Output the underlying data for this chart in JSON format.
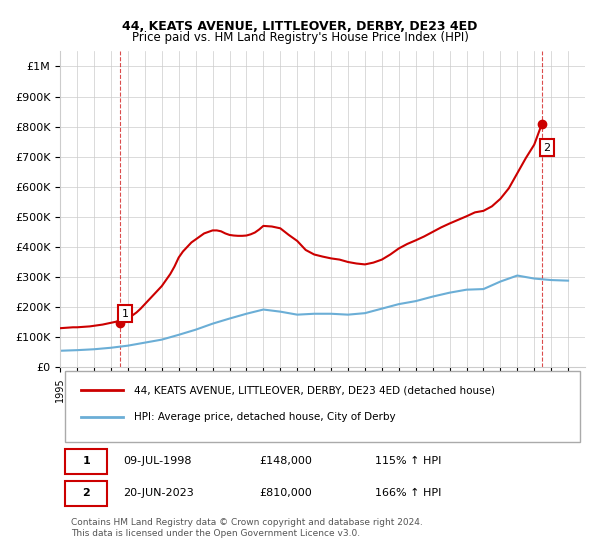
{
  "title": "44, KEATS AVENUE, LITTLEOVER, DERBY, DE23 4ED",
  "subtitle": "Price paid vs. HM Land Registry's House Price Index (HPI)",
  "legend_line1": "44, KEATS AVENUE, LITTLEOVER, DERBY, DE23 4ED (detached house)",
  "legend_line2": "HPI: Average price, detached house, City of Derby",
  "footnote": "Contains HM Land Registry data © Crown copyright and database right 2024.\nThis data is licensed under the Open Government Licence v3.0.",
  "point1_label": "1",
  "point1_date": "09-JUL-1998",
  "point1_price": "£148,000",
  "point1_hpi": "115% ↑ HPI",
  "point2_label": "2",
  "point2_date": "20-JUN-2023",
  "point2_price": "£810,000",
  "point2_hpi": "166% ↑ HPI",
  "ylim": [
    0,
    1050000
  ],
  "yticks": [
    0,
    100000,
    200000,
    300000,
    400000,
    500000,
    600000,
    700000,
    800000,
    900000,
    1000000
  ],
  "ytick_labels": [
    "£0",
    "£100K",
    "£200K",
    "£300K",
    "£400K",
    "£500K",
    "£600K",
    "£700K",
    "£800K",
    "£900K",
    "£1M"
  ],
  "hpi_color": "#6baed6",
  "sale_color": "#cc0000",
  "point_color": "#cc0000",
  "background_color": "#ffffff",
  "grid_color": "#cccccc",
  "hpi_years": [
    1995,
    1996,
    1997,
    1998,
    1999,
    2000,
    2001,
    2002,
    2003,
    2004,
    2005,
    2006,
    2007,
    2008,
    2009,
    2010,
    2011,
    2012,
    2013,
    2014,
    2015,
    2016,
    2017,
    2018,
    2019,
    2020,
    2021,
    2022,
    2023,
    2024,
    2025
  ],
  "hpi_values": [
    55000,
    57000,
    60000,
    65000,
    72000,
    82000,
    92000,
    108000,
    125000,
    145000,
    162000,
    178000,
    192000,
    185000,
    175000,
    178000,
    178000,
    175000,
    180000,
    195000,
    210000,
    220000,
    235000,
    248000,
    258000,
    260000,
    285000,
    305000,
    295000,
    290000,
    288000
  ],
  "sale_years": [
    1998.53,
    2023.46
  ],
  "sale_values": [
    148000,
    810000
  ],
  "hpi_interp_years": [
    1995.0,
    1995.25,
    1995.5,
    1995.75,
    1996.0,
    1996.25,
    1996.5,
    1996.75,
    1997.0,
    1997.25,
    1997.5,
    1997.75,
    1998.0,
    1998.25,
    1998.5,
    1998.75,
    1999.0,
    1999.25,
    1999.5,
    1999.75,
    2000.0,
    2000.25,
    2000.5,
    2000.75,
    2001.0,
    2001.25,
    2001.5,
    2001.75,
    2002.0,
    2002.25,
    2002.5,
    2002.75,
    2003.0,
    2003.25,
    2003.5,
    2003.75,
    2004.0,
    2004.25,
    2004.5,
    2004.75,
    2005.0,
    2005.25,
    2005.5,
    2005.75,
    2006.0,
    2006.25,
    2006.5,
    2006.75,
    2007.0,
    2007.25,
    2007.5,
    2007.75,
    2008.0,
    2008.25,
    2008.5,
    2008.75,
    2009.0,
    2009.25,
    2009.5,
    2009.75,
    2010.0,
    2010.25,
    2010.5,
    2010.75,
    2011.0,
    2011.25,
    2011.5,
    2011.75,
    2012.0,
    2012.25,
    2012.5,
    2012.75,
    2013.0,
    2013.25,
    2013.5,
    2013.75,
    2014.0,
    2014.25,
    2014.5,
    2014.75,
    2015.0,
    2015.25,
    2015.5,
    2015.75,
    2016.0,
    2016.25,
    2016.5,
    2016.75,
    2017.0,
    2017.25,
    2017.5,
    2017.75,
    2018.0,
    2018.25,
    2018.5,
    2018.75,
    2019.0,
    2019.25,
    2019.5,
    2019.75,
    2020.0,
    2020.25,
    2020.5,
    2020.75,
    2021.0,
    2021.25,
    2021.5,
    2021.75,
    2022.0,
    2022.25,
    2022.5,
    2022.75,
    2023.0,
    2023.25,
    2023.5,
    2023.75,
    2024.0,
    2024.25,
    2024.5,
    2024.75,
    2025.0
  ],
  "sale_line_x": [
    1995.0,
    1995.25,
    1995.5,
    1995.75,
    1996.0,
    1996.25,
    1996.5,
    1996.75,
    1997.0,
    1997.25,
    1997.5,
    1997.75,
    1998.0,
    1998.25,
    1998.5,
    1998.75,
    1999.0,
    1999.25,
    1999.5,
    1999.75,
    2000.0,
    2000.25,
    2000.5,
    2000.75,
    2001.0,
    2001.25,
    2001.5,
    2001.75,
    2002.0,
    2002.25,
    2002.5,
    2002.75,
    2003.0,
    2003.25,
    2003.5,
    2003.75,
    2004.0,
    2004.25,
    2004.5,
    2004.75,
    2005.0,
    2005.25,
    2005.5,
    2005.75,
    2006.0,
    2006.25,
    2006.5,
    2006.75,
    2007.0,
    2007.5,
    2008.0,
    2008.5,
    2009.0,
    2009.5,
    2010.0,
    2010.5,
    2011.0,
    2011.5,
    2012.0,
    2012.5,
    2013.0,
    2013.5,
    2014.0,
    2014.5,
    2015.0,
    2015.5,
    2016.0,
    2016.5,
    2017.0,
    2017.5,
    2018.0,
    2018.5,
    2019.0,
    2019.5,
    2020.0,
    2020.5,
    2021.0,
    2021.5,
    2022.0,
    2022.5,
    2023.0,
    2023.46
  ],
  "sale_line_y": [
    130000,
    131000,
    132000,
    133000,
    133000,
    134000,
    135000,
    136000,
    138000,
    140000,
    142000,
    145000,
    148000,
    151000,
    154000,
    158000,
    164000,
    172000,
    182000,
    195000,
    210000,
    225000,
    240000,
    255000,
    270000,
    290000,
    310000,
    335000,
    365000,
    385000,
    400000,
    415000,
    425000,
    435000,
    445000,
    450000,
    455000,
    455000,
    452000,
    445000,
    440000,
    438000,
    437000,
    437000,
    438000,
    442000,
    448000,
    458000,
    470000,
    468000,
    462000,
    440000,
    420000,
    390000,
    375000,
    368000,
    362000,
    358000,
    350000,
    345000,
    342000,
    348000,
    358000,
    375000,
    395000,
    410000,
    422000,
    435000,
    450000,
    465000,
    478000,
    490000,
    502000,
    515000,
    520000,
    535000,
    560000,
    595000,
    645000,
    695000,
    740000,
    810000
  ]
}
